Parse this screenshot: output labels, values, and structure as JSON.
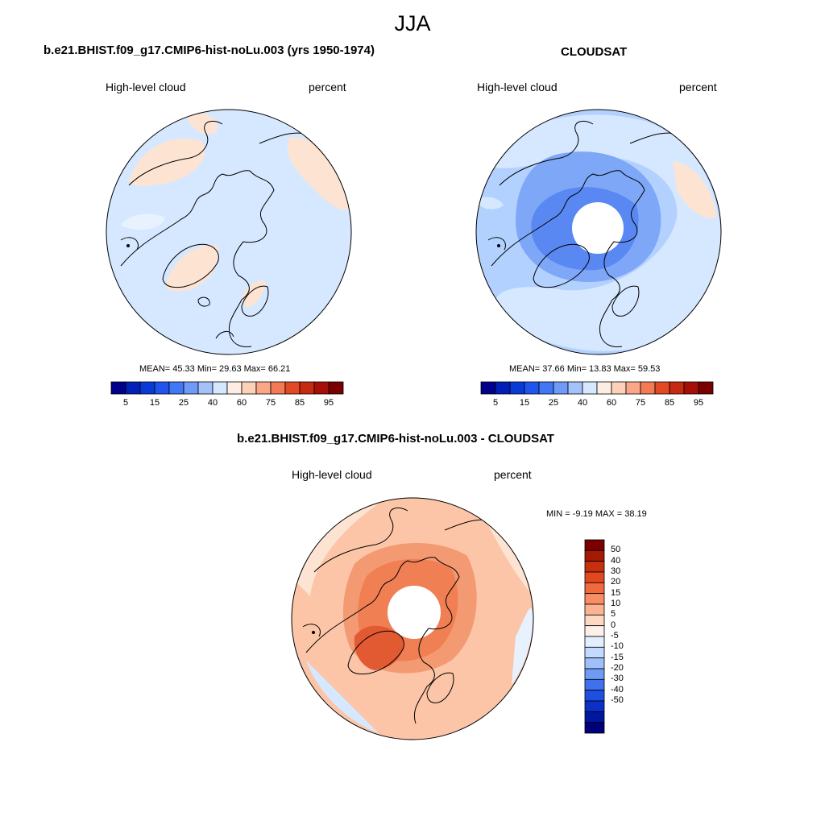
{
  "page_title": "JJA",
  "panels": [
    {
      "title": "b.e21.BHIST.f09_g17.CMIP6-hist-noLu.003 (yrs 1950-1974)",
      "left_label": "High-level cloud",
      "right_label": "percent",
      "stats": "MEAN=  45.33  Min=  29.63  Max=  66.21",
      "fill": "#d6e8ff"
    },
    {
      "title": "CLOUDSAT",
      "left_label": "High-level cloud",
      "right_label": "percent",
      "stats": "MEAN=  37.66  Min=  13.83  Max=  59.53",
      "fill": "#b3d1ff"
    },
    {
      "title": "b.e21.BHIST.f09_g17.CMIP6-hist-noLu.003 - CLOUDSAT",
      "left_label": "High-level cloud",
      "right_label": "percent",
      "stats": "MIN =  -9.19 MAX =  38.19",
      "fill": "#fcc5a8"
    }
  ],
  "colorbar_abs": {
    "colors": [
      "#00008b",
      "#0020b8",
      "#0a3ad6",
      "#1f55ee",
      "#3f77f5",
      "#6f9af7",
      "#a3c2fa",
      "#d6e8ff",
      "#fdeee3",
      "#fcd1b8",
      "#f9a787",
      "#f27a55",
      "#e24a26",
      "#c62a10",
      "#a50f05",
      "#7a0000"
    ],
    "labels": [
      "5",
      "15",
      "25",
      "40",
      "60",
      "75",
      "85",
      "95"
    ]
  },
  "colorbar_diff": {
    "colors": [
      "#7a0000",
      "#a51a04",
      "#c82f0c",
      "#e2481f",
      "#f06a3e",
      "#f98d66",
      "#fbb391",
      "#fdd8c3",
      "#fdf0e8",
      "#e3efff",
      "#c3daff",
      "#9ebff8",
      "#6f9af5",
      "#3f70ee",
      "#1f4fe0",
      "#0a30c8",
      "#00169f",
      "#00007a"
    ],
    "labels": [
      "50",
      "40",
      "30",
      "20",
      "15",
      "10",
      "5",
      "0",
      "-5",
      "-10",
      "-15",
      "-20",
      "-30",
      "-40",
      "-50"
    ]
  }
}
